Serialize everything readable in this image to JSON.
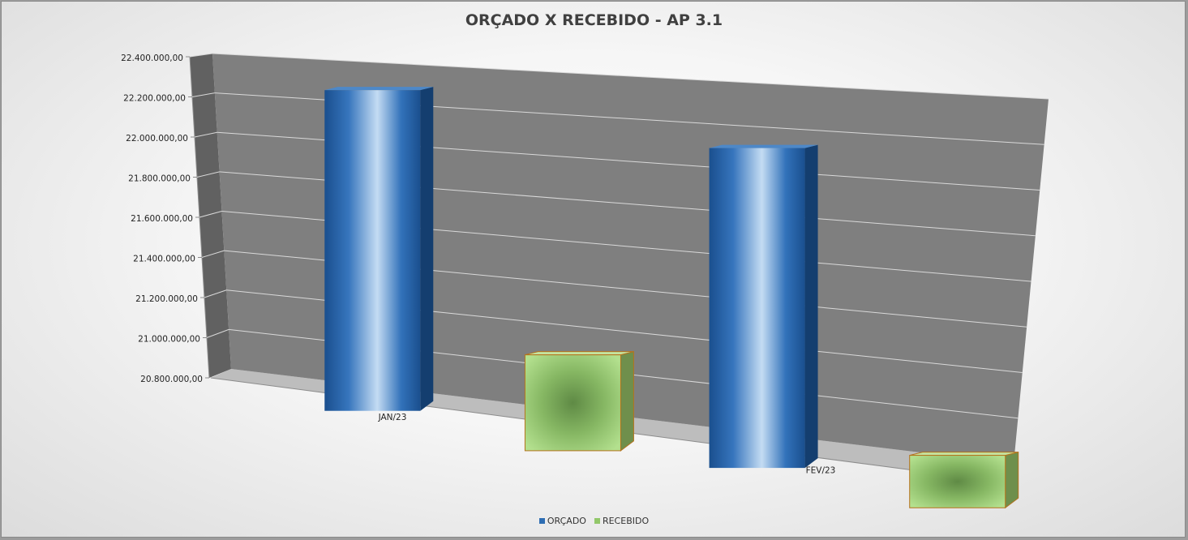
{
  "chart_data": {
    "type": "bar",
    "title": "ORÇADO X RECEBIDO - AP 3.1",
    "categories": [
      "JAN/23",
      "FEV/23"
    ],
    "series": [
      {
        "name": "ORÇADO",
        "values": [
          22360000,
          22250000
        ],
        "color": "#2e6db3"
      },
      {
        "name": "RECEBIDO",
        "values": [
          21250000,
          21030000
        ],
        "color": "#92c76a"
      }
    ],
    "yticks": [
      "20.800.000,00",
      "21.000.000,00",
      "21.200.000,00",
      "21.400.000,00",
      "21.600.000,00",
      "21.800.000,00",
      "22.000.000,00",
      "22.200.000,00",
      "22.400.000,00"
    ],
    "ylim": [
      20800000,
      22400000
    ],
    "xlabel": "",
    "ylabel": "",
    "grid": true,
    "legend_position": "bottom",
    "style": "3d-column"
  }
}
